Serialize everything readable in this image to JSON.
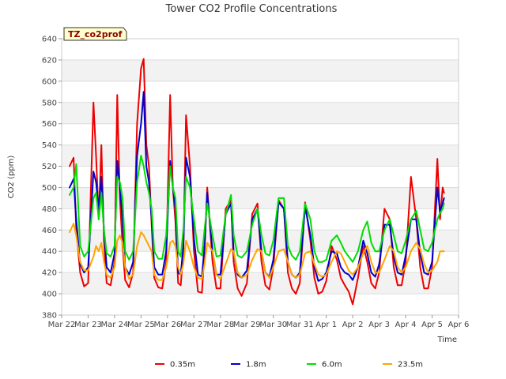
{
  "chart_data": {
    "type": "line",
    "title": "Tower CO2 Profile Concentrations",
    "xlabel": "Time",
    "ylabel": "CO2 (ppm)",
    "badge": "TZ_co2prof",
    "ylim": [
      380,
      640
    ],
    "yticks": [
      380,
      400,
      420,
      440,
      460,
      480,
      500,
      520,
      540,
      560,
      580,
      600,
      620,
      640
    ],
    "xlim_days": [
      0,
      15
    ],
    "x_unit": "days since Mar 22 00:00",
    "xtick_labels": [
      "Mar 22",
      "Mar 23",
      "Mar 24",
      "Mar 25",
      "Mar 26",
      "Mar 27",
      "Mar 28",
      "Mar 29",
      "Mar 30",
      "Mar 31",
      "Apr 1",
      "Apr 2",
      "Apr 3",
      "Apr 4",
      "Apr 5",
      "Apr 6"
    ],
    "grid": true,
    "legend_position": "bottom",
    "series": [
      {
        "name": "0.35m",
        "color": "#ee0000",
        "x": [
          0.3,
          0.45,
          0.55,
          0.7,
          0.85,
          1.0,
          1.2,
          1.3,
          1.4,
          1.5,
          1.6,
          1.7,
          1.85,
          2.0,
          2.1,
          2.2,
          2.3,
          2.4,
          2.55,
          2.7,
          2.85,
          3.0,
          3.1,
          3.2,
          3.3,
          3.4,
          3.5,
          3.65,
          3.8,
          3.95,
          4.1,
          4.2,
          4.3,
          4.4,
          4.5,
          4.6,
          4.7,
          4.85,
          5.0,
          5.15,
          5.3,
          5.4,
          5.5,
          5.7,
          5.85,
          6.0,
          6.2,
          6.4,
          6.5,
          6.65,
          6.8,
          7.0,
          7.2,
          7.4,
          7.55,
          7.7,
          7.85,
          8.0,
          8.2,
          8.4,
          8.55,
          8.7,
          8.85,
          9.0,
          9.2,
          9.4,
          9.55,
          9.7,
          9.85,
          10.0,
          10.2,
          10.4,
          10.55,
          10.7,
          10.85,
          11.0,
          11.2,
          11.4,
          11.55,
          11.7,
          11.85,
          12.0,
          12.2,
          12.4,
          12.55,
          12.7,
          12.85,
          13.0,
          13.2,
          13.4,
          13.55,
          13.7,
          13.85,
          14.0,
          14.2,
          14.3,
          14.4,
          14.45
        ],
        "y": [
          520,
          528,
          460,
          420,
          407,
          410,
          580,
          530,
          470,
          540,
          450,
          410,
          408,
          430,
          587,
          490,
          445,
          413,
          406,
          420,
          560,
          612,
          621,
          540,
          520,
          465,
          415,
          406,
          405,
          430,
          587,
          500,
          468,
          410,
          408,
          440,
          568,
          520,
          440,
          402,
          401,
          440,
          500,
          430,
          405,
          405,
          480,
          488,
          430,
          405,
          398,
          410,
          475,
          485,
          430,
          408,
          404,
          425,
          488,
          480,
          420,
          405,
          400,
          410,
          486,
          450,
          415,
          400,
          402,
          412,
          445,
          432,
          415,
          408,
          402,
          390,
          415,
          445,
          430,
          410,
          405,
          420,
          480,
          470,
          425,
          408,
          408,
          430,
          510,
          470,
          425,
          405,
          405,
          425,
          527,
          470,
          500,
          495
        ]
      },
      {
        "name": "1.8m",
        "color": "#0000cc",
        "x": [
          0.3,
          0.45,
          0.55,
          0.7,
          0.85,
          1.0,
          1.2,
          1.3,
          1.4,
          1.5,
          1.6,
          1.7,
          1.85,
          2.0,
          2.1,
          2.2,
          2.3,
          2.4,
          2.55,
          2.7,
          2.85,
          3.0,
          3.1,
          3.2,
          3.3,
          3.4,
          3.5,
          3.65,
          3.8,
          3.95,
          4.1,
          4.2,
          4.3,
          4.4,
          4.5,
          4.6,
          4.7,
          4.85,
          5.0,
          5.15,
          5.3,
          5.4,
          5.5,
          5.7,
          5.85,
          6.0,
          6.2,
          6.4,
          6.5,
          6.65,
          6.8,
          7.0,
          7.2,
          7.4,
          7.55,
          7.7,
          7.85,
          8.0,
          8.2,
          8.4,
          8.55,
          8.7,
          8.85,
          9.0,
          9.2,
          9.4,
          9.55,
          9.7,
          9.85,
          10.0,
          10.2,
          10.4,
          10.55,
          10.7,
          10.85,
          11.0,
          11.2,
          11.4,
          11.55,
          11.7,
          11.85,
          12.0,
          12.2,
          12.4,
          12.55,
          12.7,
          12.85,
          13.0,
          13.2,
          13.4,
          13.55,
          13.7,
          13.85,
          14.0,
          14.2,
          14.3,
          14.4,
          14.45
        ],
        "y": [
          500,
          508,
          470,
          428,
          420,
          425,
          515,
          505,
          480,
          510,
          460,
          425,
          420,
          438,
          525,
          500,
          470,
          425,
          418,
          430,
          530,
          560,
          590,
          520,
          505,
          470,
          425,
          418,
          418,
          440,
          525,
          500,
          480,
          420,
          418,
          445,
          528,
          510,
          452,
          418,
          416,
          445,
          495,
          440,
          418,
          418,
          475,
          485,
          440,
          418,
          415,
          422,
          470,
          480,
          440,
          420,
          416,
          432,
          486,
          480,
          430,
          418,
          415,
          420,
          482,
          455,
          425,
          412,
          414,
          420,
          440,
          438,
          425,
          420,
          418,
          413,
          425,
          450,
          438,
          420,
          416,
          428,
          465,
          465,
          435,
          420,
          418,
          436,
          470,
          470,
          438,
          420,
          418,
          430,
          500,
          478,
          485,
          490
        ]
      },
      {
        "name": "6.0m",
        "color": "#00dd00",
        "x": [
          0.3,
          0.45,
          0.55,
          0.7,
          0.85,
          1.0,
          1.2,
          1.3,
          1.4,
          1.5,
          1.6,
          1.7,
          1.85,
          2.0,
          2.1,
          2.2,
          2.3,
          2.4,
          2.55,
          2.7,
          2.85,
          3.0,
          3.1,
          3.2,
          3.3,
          3.4,
          3.5,
          3.65,
          3.8,
          3.95,
          4.1,
          4.2,
          4.3,
          4.4,
          4.5,
          4.6,
          4.7,
          4.85,
          5.0,
          5.15,
          5.3,
          5.4,
          5.5,
          5.7,
          5.85,
          6.0,
          6.2,
          6.4,
          6.5,
          6.65,
          6.8,
          7.0,
          7.2,
          7.4,
          7.55,
          7.7,
          7.85,
          8.0,
          8.2,
          8.4,
          8.55,
          8.7,
          8.85,
          9.0,
          9.2,
          9.4,
          9.55,
          9.7,
          9.85,
          10.0,
          10.2,
          10.4,
          10.55,
          10.7,
          10.85,
          11.0,
          11.2,
          11.4,
          11.55,
          11.7,
          11.85,
          12.0,
          12.2,
          12.4,
          12.55,
          12.7,
          12.85,
          13.0,
          13.2,
          13.4,
          13.55,
          13.7,
          13.85,
          14.0,
          14.2,
          14.3,
          14.4,
          14.45
        ],
        "y": [
          493,
          500,
          522,
          445,
          435,
          440,
          490,
          495,
          470,
          495,
          460,
          438,
          435,
          445,
          510,
          505,
          490,
          440,
          432,
          440,
          505,
          530,
          520,
          505,
          495,
          480,
          440,
          433,
          433,
          455,
          520,
          500,
          490,
          440,
          435,
          460,
          510,
          500,
          470,
          440,
          436,
          460,
          485,
          455,
          435,
          436,
          475,
          493,
          455,
          436,
          434,
          440,
          465,
          480,
          455,
          438,
          436,
          450,
          490,
          490,
          445,
          436,
          432,
          440,
          485,
          470,
          440,
          430,
          430,
          432,
          450,
          455,
          448,
          440,
          435,
          430,
          440,
          460,
          468,
          448,
          440,
          440,
          460,
          470,
          455,
          440,
          438,
          450,
          470,
          478,
          460,
          442,
          440,
          448,
          470,
          476,
          480,
          485
        ]
      },
      {
        "name": "23.5m",
        "color": "#ffa500",
        "x": [
          0.3,
          0.45,
          0.55,
          0.7,
          0.85,
          1.0,
          1.2,
          1.3,
          1.4,
          1.5,
          1.6,
          1.7,
          1.85,
          2.0,
          2.1,
          2.2,
          2.3,
          2.4,
          2.55,
          2.7,
          2.85,
          3.0,
          3.1,
          3.2,
          3.3,
          3.4,
          3.5,
          3.65,
          3.8,
          3.95,
          4.1,
          4.2,
          4.3,
          4.4,
          4.5,
          4.6,
          4.7,
          4.85,
          5.0,
          5.15,
          5.3,
          5.4,
          5.5,
          5.7,
          5.85,
          6.0,
          6.2,
          6.4,
          6.5,
          6.65,
          6.8,
          7.0,
          7.2,
          7.4,
          7.55,
          7.7,
          7.85,
          8.0,
          8.2,
          8.4,
          8.55,
          8.7,
          8.85,
          9.0,
          9.2,
          9.4,
          9.55,
          9.7,
          9.85,
          10.0,
          10.2,
          10.4,
          10.55,
          10.7,
          10.85,
          11.0,
          11.2,
          11.4,
          11.55,
          11.7,
          11.85,
          12.0,
          12.2,
          12.4,
          12.55,
          12.7,
          12.85,
          13.0,
          13.2,
          13.4,
          13.55,
          13.7,
          13.85,
          14.0,
          14.2,
          14.3,
          14.4,
          14.45
        ],
        "y": [
          458,
          466,
          455,
          430,
          422,
          422,
          435,
          445,
          440,
          448,
          430,
          418,
          415,
          425,
          450,
          455,
          448,
          425,
          414,
          418,
          445,
          458,
          455,
          450,
          445,
          440,
          418,
          413,
          413,
          425,
          448,
          450,
          445,
          425,
          418,
          428,
          450,
          440,
          425,
          415,
          414,
          428,
          448,
          440,
          418,
          414,
          428,
          442,
          440,
          420,
          415,
          418,
          432,
          442,
          440,
          420,
          415,
          425,
          440,
          442,
          430,
          418,
          415,
          418,
          438,
          440,
          428,
          418,
          416,
          418,
          430,
          440,
          438,
          430,
          422,
          418,
          425,
          438,
          445,
          430,
          420,
          420,
          432,
          445,
          440,
          425,
          420,
          425,
          440,
          448,
          442,
          428,
          420,
          422,
          430,
          440,
          440,
          440
        ]
      }
    ]
  }
}
